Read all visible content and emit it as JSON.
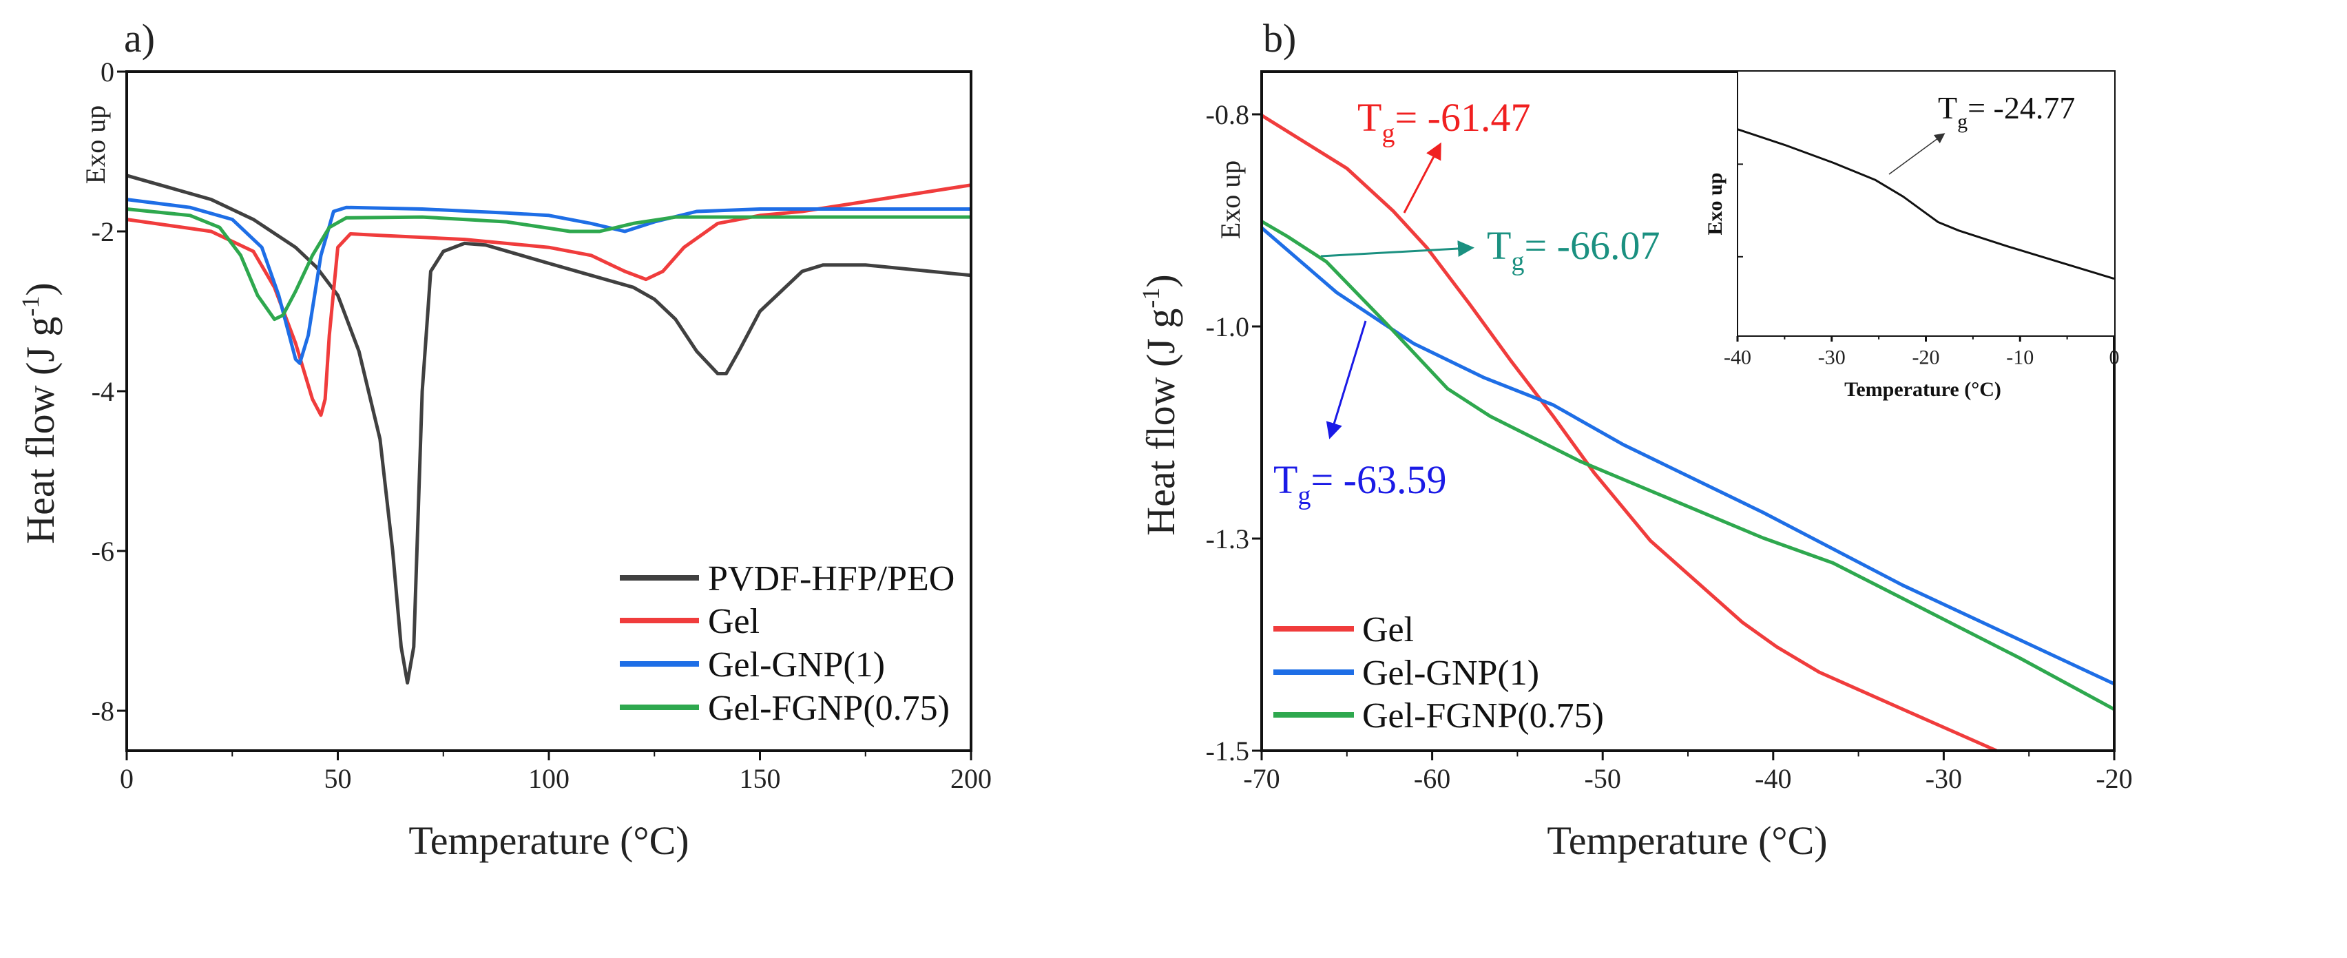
{
  "chart_data": [
    {
      "panel_label": "a)",
      "type": "line",
      "xlabel": "Temperature (°C)",
      "xlabel_parts": {
        "pre": "Temperature (",
        "sup": "o",
        "post": "C)"
      },
      "ylabel_parts": {
        "pre": "Heat flow (J g",
        "sup": "-1",
        "post": ")"
      },
      "ylabel": "Heat flow (J g-1)",
      "exo_label": "Exo up",
      "xlim": [
        0,
        200
      ],
      "ylim": [
        -8.5,
        0
      ],
      "x_ticks": [
        0,
        50,
        100,
        150,
        200
      ],
      "x_tick_labels": [
        "0",
        "50",
        "100",
        "150",
        "200"
      ],
      "y_ticks": [
        0,
        -2,
        -4,
        -6,
        -8
      ],
      "y_tick_labels": [
        "0",
        "-2",
        "-4",
        "-6",
        "-8"
      ],
      "legend_position": "bottom-right",
      "series": [
        {
          "name": "PVDF-HFP/PEO",
          "color": "#404040",
          "x": [
            0,
            10,
            20,
            30,
            40,
            45,
            50,
            55,
            60,
            63,
            65,
            66.5,
            68,
            70,
            72,
            75,
            80,
            85,
            100,
            110,
            120,
            125,
            130,
            135,
            140,
            142,
            145,
            150,
            155,
            160,
            165,
            175,
            200
          ],
          "y": [
            -1.3,
            -1.45,
            -1.6,
            -1.85,
            -2.2,
            -2.45,
            -2.8,
            -3.5,
            -4.6,
            -6.0,
            -7.2,
            -7.65,
            -7.2,
            -4.0,
            -2.5,
            -2.25,
            -2.15,
            -2.17,
            -2.4,
            -2.55,
            -2.7,
            -2.85,
            -3.1,
            -3.5,
            -3.78,
            -3.78,
            -3.5,
            -3.0,
            -2.75,
            -2.5,
            -2.42,
            -2.42,
            -2.55
          ]
        },
        {
          "name": "Gel",
          "color": "#f03c3c",
          "x": [
            0,
            20,
            30,
            35,
            40,
            44,
            46,
            47,
            48,
            50,
            53,
            60,
            80,
            100,
            110,
            118,
            123,
            127,
            132,
            140,
            150,
            160,
            200
          ],
          "y": [
            -1.85,
            -2.0,
            -2.25,
            -2.7,
            -3.4,
            -4.1,
            -4.3,
            -4.1,
            -3.3,
            -2.2,
            -2.03,
            -2.05,
            -2.1,
            -2.2,
            -2.3,
            -2.5,
            -2.6,
            -2.5,
            -2.2,
            -1.9,
            -1.8,
            -1.75,
            -1.42
          ]
        },
        {
          "name": "Gel-GNP(1)",
          "color": "#1e6ee6",
          "x": [
            0,
            15,
            25,
            32,
            36,
            40,
            41,
            43,
            46,
            49,
            52,
            70,
            90,
            100,
            110,
            118,
            125,
            135,
            150,
            200
          ],
          "y": [
            -1.6,
            -1.7,
            -1.85,
            -2.2,
            -2.8,
            -3.6,
            -3.65,
            -3.3,
            -2.3,
            -1.75,
            -1.7,
            -1.72,
            -1.77,
            -1.8,
            -1.9,
            -2.0,
            -1.88,
            -1.75,
            -1.72,
            -1.72
          ]
        },
        {
          "name": "Gel-FGNP(0.75)",
          "color": "#2ea84e",
          "x": [
            0,
            15,
            22,
            27,
            31,
            35,
            37,
            40,
            44,
            48,
            52,
            70,
            90,
            105,
            112,
            120,
            130,
            200
          ],
          "y": [
            -1.72,
            -1.8,
            -1.95,
            -2.3,
            -2.8,
            -3.1,
            -3.05,
            -2.75,
            -2.3,
            -1.95,
            -1.83,
            -1.82,
            -1.88,
            -2.0,
            -2.0,
            -1.9,
            -1.82,
            -1.82
          ]
        }
      ]
    },
    {
      "panel_label": "b)",
      "type": "line",
      "xlabel": "Temperature (°C)",
      "xlabel_parts": {
        "pre": "Temperature (",
        "sup": "o",
        "post": "C)"
      },
      "ylabel_parts": {
        "pre": "Heat flow (J g",
        "sup": "-1",
        "post": ")"
      },
      "ylabel": "Heat flow (J g-1)",
      "exo_label": "Exo up",
      "xlim": [
        -70,
        -20
      ],
      "ylim": [
        -1.5,
        -0.76
      ],
      "x_ticks": [
        -70,
        -60,
        -50,
        -40,
        -30,
        -20
      ],
      "x_tick_labels": [
        "-70",
        "-60",
        "-50",
        "-40",
        "-30",
        "-20"
      ],
      "y_ticks": [
        -0.8,
        -1.0,
        -1.3,
        -1.5
      ],
      "y_tick_labels": [
        "-0.8",
        "-1.0",
        "-1.3",
        "-1.5"
      ],
      "legend_position": "bottom-left",
      "series": [
        {
          "name": "Gel",
          "color": "#f03c3c",
          "x": [
            -70,
            -65,
            -62.3,
            -60.3,
            -57.8,
            -55.4,
            -52.9,
            -50.5,
            -47.2,
            -41.8,
            -39.8,
            -37.3,
            -32.4,
            -26.9
          ],
          "y": [
            -0.801,
            -0.851,
            -0.891,
            -0.926,
            -0.979,
            -1.048,
            -1.127,
            -1.207,
            -1.302,
            -1.379,
            -1.402,
            -1.426,
            -1.461,
            -1.5
          ]
        },
        {
          "name": "Gel-GNP(1)",
          "color": "#1e6ee6",
          "x": [
            -70,
            -65.6,
            -61.1,
            -57.0,
            -52.9,
            -48.8,
            -40.6,
            -32.4,
            -20
          ],
          "y": [
            -0.907,
            -0.968,
            -1.024,
            -1.072,
            -1.111,
            -1.167,
            -1.263,
            -1.344,
            -1.437
          ]
        },
        {
          "name": "Gel-FGNP(0.75)",
          "color": "#2ea84e",
          "x": [
            -70,
            -68.5,
            -66.2,
            -62.7,
            -59.1,
            -56.6,
            -51.3,
            -40.6,
            -36.5,
            -25.5,
            -20
          ],
          "y": [
            -0.901,
            -0.915,
            -0.939,
            -0.997,
            -1.088,
            -1.127,
            -1.191,
            -1.299,
            -1.323,
            -1.413,
            -1.461
          ]
        }
      ],
      "annotations": [
        {
          "sym": "T",
          "sub": "g",
          "text": "= -61.47",
          "color": "#f02020"
        },
        {
          "sym": "T",
          "sub": "g",
          "text": "= -66.07",
          "color": "#1a9080"
        },
        {
          "sym": "T",
          "sub": "g",
          "text": "= -63.59",
          "color": "#1a1ae6"
        }
      ]
    },
    {
      "panel_label": "inset",
      "type": "line",
      "xlabel": "Temperature (°C)",
      "xlabel_parts": {
        "pre": "Temperature (",
        "sup": "o",
        "post": "C)"
      },
      "ylabel": "Exo up",
      "xlim": [
        -40,
        0
      ],
      "ylim": [
        0,
        1
      ],
      "x_ticks": [
        -40,
        -30,
        -20,
        -10,
        0
      ],
      "x_tick_labels": [
        "-40",
        "-30",
        "-20",
        "-10",
        "0"
      ],
      "series": [
        {
          "name": "Gel inset",
          "color": "#111111",
          "x": [
            -40,
            -35.0,
            -29.8,
            -25.4,
            -22.4,
            -18.7,
            -16.5,
            -11.3,
            0
          ],
          "y": [
            0.782,
            0.723,
            0.655,
            0.591,
            0.527,
            0.431,
            0.399,
            0.339,
            0.217
          ]
        }
      ],
      "annotations": [
        {
          "sym": "T",
          "sub": "g",
          "text": "= -24.77",
          "color": "#111111"
        }
      ]
    }
  ]
}
